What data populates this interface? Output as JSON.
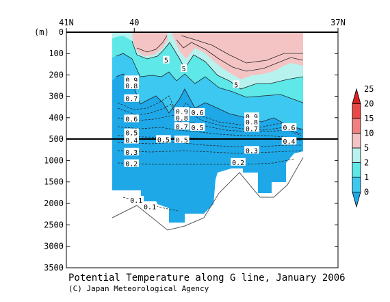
{
  "chart_data": {
    "type": "heatmap",
    "title": "Potential Temperature along G line, January 2006",
    "credit": "(C) Japan Meteorological Agency",
    "ylabel": "(m)",
    "x_ticks": [
      {
        "label": "41N",
        "lat": 41
      },
      {
        "label": "40",
        "lat": 40
      },
      {
        "label": "37N",
        "lat": 37
      }
    ],
    "xlim": [
      41,
      37
    ],
    "y_ticks_upper": [
      0,
      100,
      200,
      300,
      400,
      500
    ],
    "y_ticks_lower": [
      1000,
      1500,
      2000,
      2500,
      3000,
      3500
    ],
    "ylim_upper": [
      0,
      500
    ],
    "ylim_lower": [
      500,
      3500
    ],
    "colorbar": {
      "levels": [
        "0",
        "1",
        "2",
        "5",
        "10",
        "15",
        "20",
        "25"
      ],
      "colors": [
        "#1ea8e8",
        "#3cc8f0",
        "#5ee8e8",
        "#b8f2ee",
        "#f4c4c4",
        "#f08080",
        "#e84848",
        "#d82020"
      ]
    },
    "contour_labels": [
      {
        "text": "5",
        "lat": 39.53,
        "depth": 130
      },
      {
        "text": "5",
        "lat": 39.27,
        "depth": 170
      },
      {
        "text": "5",
        "lat": 38.5,
        "depth": 245
      },
      {
        "text": "0.9",
        "lat": 40.04,
        "depth": 222
      },
      {
        "text": "0.8",
        "lat": 40.04,
        "depth": 250
      },
      {
        "text": "0.7",
        "lat": 40.04,
        "depth": 310
      },
      {
        "text": "0.6",
        "lat": 40.04,
        "depth": 405
      },
      {
        "text": "0.5",
        "lat": 40.04,
        "depth": 470
      },
      {
        "text": "0.4",
        "lat": 40.04,
        "depth": 525
      },
      {
        "text": "0.3",
        "lat": 40.04,
        "depth": 800
      },
      {
        "text": "0.2",
        "lat": 40.04,
        "depth": 1070
      },
      {
        "text": "0.9",
        "lat": 39.3,
        "depth": 370
      },
      {
        "text": "0.8",
        "lat": 39.3,
        "depth": 400
      },
      {
        "text": "0.7",
        "lat": 39.3,
        "depth": 440
      },
      {
        "text": "0.6",
        "lat": 39.07,
        "depth": 375
      },
      {
        "text": "0.5",
        "lat": 39.07,
        "depth": 445
      },
      {
        "text": "0.5",
        "lat": 39.57,
        "depth": 505
      },
      {
        "text": "0.5",
        "lat": 39.3,
        "depth": 515
      },
      {
        "text": "0.9",
        "lat": 38.27,
        "depth": 395
      },
      {
        "text": "0.8",
        "lat": 38.27,
        "depth": 420
      },
      {
        "text": "0.7",
        "lat": 38.27,
        "depth": 450
      },
      {
        "text": "0.6",
        "lat": 37.72,
        "depth": 445
      },
      {
        "text": "0.4",
        "lat": 37.72,
        "depth": 550
      },
      {
        "text": "0.3",
        "lat": 38.27,
        "depth": 760
      },
      {
        "text": "0.2",
        "lat": 38.47,
        "depth": 1040
      },
      {
        "text": "0.1",
        "lat": 39.97,
        "depth": 1920
      },
      {
        "text": "0.1",
        "lat": 39.77,
        "depth": 2070
      }
    ]
  }
}
